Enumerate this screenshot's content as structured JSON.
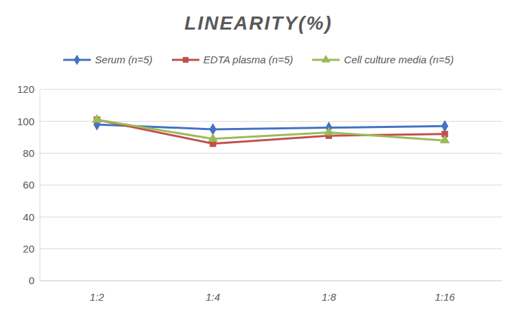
{
  "chart_data": {
    "type": "line",
    "title": "LINEARITY(%)",
    "categories": [
      "1:2",
      "1:4",
      "1:8",
      "1:16"
    ],
    "series": [
      {
        "name": "Serum (n=5)",
        "color": "#4472c4",
        "marker": "diamond",
        "values": [
          98,
          95,
          96,
          97
        ]
      },
      {
        "name": "EDTA plasma (n=5)",
        "color": "#c0504d",
        "marker": "square",
        "values": [
          101,
          86,
          91,
          92
        ]
      },
      {
        "name": "Cell culture media (n=5)",
        "color": "#9bbb59",
        "marker": "triangle",
        "values": [
          101,
          89,
          93,
          88
        ]
      }
    ],
    "ylim": [
      0,
      120
    ],
    "yticks": [
      0,
      20,
      40,
      60,
      80,
      100,
      120
    ],
    "grid": true,
    "legend": "top"
  }
}
